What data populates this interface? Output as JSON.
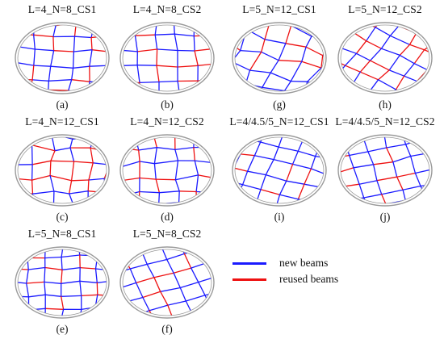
{
  "panels": [
    {
      "title": "L=4_N=8_CS1",
      "caption": "(a)"
    },
    {
      "title": "L=4_N=8_CS2",
      "caption": "(b)"
    },
    {
      "title": "L=5_N=12_CS1",
      "caption": "(g)"
    },
    {
      "title": "L=5_N=12_CS2",
      "caption": "(h)"
    },
    {
      "title": "L=4_N=12_CS1",
      "caption": "(c)"
    },
    {
      "title": "L=4_N=12_CS2",
      "caption": "(d)"
    },
    {
      "title": "L=4/4.5/5_N=12_CS1",
      "caption": "(i)"
    },
    {
      "title": "L=4/4.5/5_N=12_CS2",
      "caption": "(j)"
    },
    {
      "title": "L=5_N=8_CS1",
      "caption": "(e)"
    },
    {
      "title": "L=5_N=8_CS2",
      "caption": "(f)"
    }
  ],
  "legend": {
    "new": {
      "label": "new beams",
      "color": "#1a1aff"
    },
    "reused": {
      "label": "reused beams",
      "color": "#ee1111"
    }
  },
  "colors": {
    "outline": "#9a9a9a"
  }
}
